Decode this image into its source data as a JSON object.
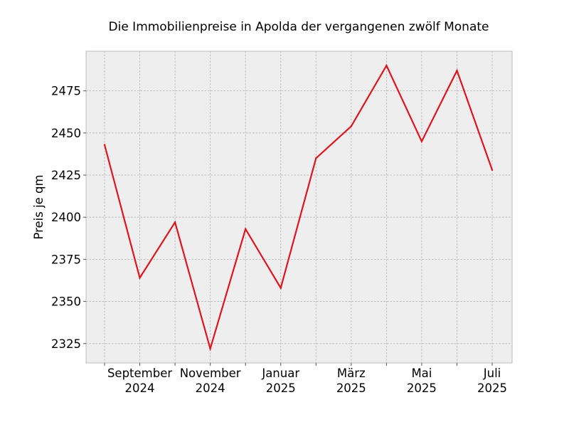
{
  "chart_data": {
    "type": "line",
    "title": "Die Immobilienpreise in Apolda der vergangenen zwölf Monate",
    "xlabel": "",
    "ylabel": "Preis je qm",
    "x": [
      "2024-08",
      "2024-09",
      "2024-10",
      "2024-11",
      "2024-12",
      "2025-01",
      "2025-02",
      "2025-03",
      "2025-04",
      "2025-05",
      "2025-06",
      "2025-07"
    ],
    "x_tick_labels": [
      {
        "x": "2024-09",
        "line1": "September",
        "line2": "2024"
      },
      {
        "x": "2024-11",
        "line1": "November",
        "line2": "2024"
      },
      {
        "x": "2025-01",
        "line1": "Januar",
        "line2": "2025"
      },
      {
        "x": "2025-03",
        "line1": "März",
        "line2": "2025"
      },
      {
        "x": "2025-05",
        "line1": "Mai",
        "line2": "2025"
      },
      {
        "x": "2025-07",
        "line1": "Juli",
        "line2": "2025"
      }
    ],
    "series": [
      {
        "values": [
          2443,
          2364,
          2397,
          2322,
          2393,
          2358,
          2435,
          2454,
          2490,
          2445,
          2487,
          2428
        ],
        "color": "#e0141e"
      }
    ],
    "ylim": [
      2313.5,
      2498.5
    ],
    "y_ticks": [
      2325,
      2350,
      2375,
      2400,
      2425,
      2450,
      2475
    ],
    "grid": true,
    "background_color": "#eeeeee",
    "grid_color": "#b0b0b0"
  }
}
